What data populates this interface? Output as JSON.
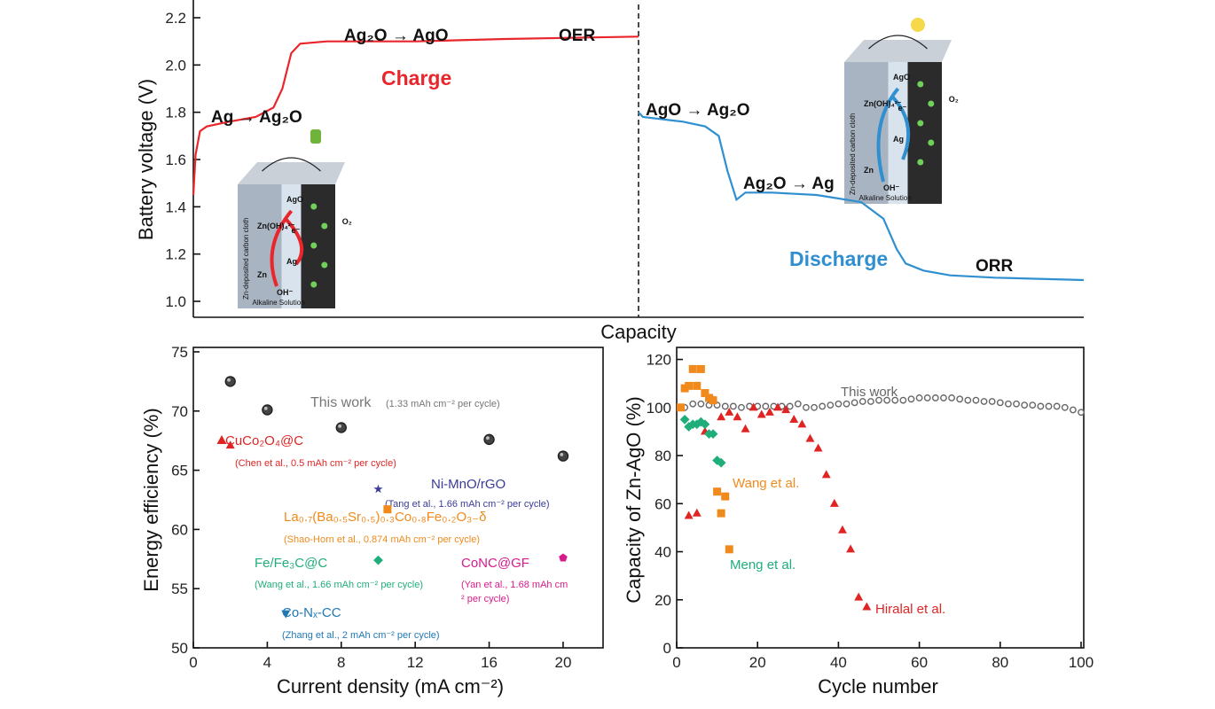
{
  "chart_data": [
    {
      "type": "line",
      "ylabel": "Battery voltage (V)",
      "xlabel": "Capacity",
      "ylim": [
        1.0,
        2.2
      ],
      "yticks": [
        "1.0",
        "1.2",
        "1.4",
        "1.6",
        "1.8",
        "2.0",
        "2.2"
      ],
      "grid": false,
      "series": [
        {
          "name": "Charge",
          "color": "#e8262b",
          "x": [
            0,
            0.5,
            1.5,
            3,
            8,
            14,
            18,
            20,
            22,
            24,
            30,
            50,
            70,
            100
          ],
          "y": [
            1.45,
            1.62,
            1.72,
            1.74,
            1.76,
            1.78,
            1.82,
            1.9,
            2.05,
            2.09,
            2.1,
            2.1,
            2.11,
            2.12
          ]
        },
        {
          "name": "Discharge",
          "color": "#2f8fd0",
          "x": [
            0,
            1,
            10,
            15,
            18,
            20,
            22,
            24,
            26,
            30,
            40,
            50,
            55,
            58,
            60,
            64,
            70,
            80,
            100
          ],
          "y": [
            1.8,
            1.78,
            1.76,
            1.74,
            1.7,
            1.55,
            1.43,
            1.46,
            1.46,
            1.46,
            1.45,
            1.42,
            1.35,
            1.22,
            1.16,
            1.13,
            1.11,
            1.1,
            1.09
          ]
        }
      ],
      "annotations": {
        "charge_label": "Charge",
        "discharge_label": "Discharge",
        "ag_ag2o": "Ag → Ag₂O",
        "ag2o_ago": "Ag₂O → AgO",
        "oer": "OER",
        "ago_ag2o": "AgO → Ag₂O",
        "ag2o_ag": "Ag₂O → Ag",
        "orr": "ORR"
      },
      "insets": {
        "cloth": "Zn-deposited carbon cloth",
        "solution": "Alkaline Solution",
        "ago": "AgO",
        "zincate": "Zn(OH)₄²⁻",
        "ag": "Ag",
        "electron": "e⁻",
        "zn": "Zn",
        "oh": "OH⁻",
        "o2": "O₂",
        "charge_icon": "plug-icon",
        "discharge_icon": "lightbulb-icon"
      }
    },
    {
      "type": "scatter",
      "xlabel": "Current density (mA cm⁻²)",
      "ylabel": "Energy efficiency (%)",
      "xlim": [
        0,
        21
      ],
      "ylim": [
        50,
        75
      ],
      "xticks": [
        "0",
        "4",
        "8",
        "12",
        "16",
        "20"
      ],
      "yticks": [
        "50",
        "55",
        "60",
        "65",
        "70",
        "75"
      ],
      "series": [
        {
          "name": "This work",
          "note": "(1.33 mAh cm⁻² per cycle)",
          "color": "#555555",
          "marker": "sphere",
          "x": [
            2,
            4,
            8,
            16,
            20
          ],
          "y": [
            72.5,
            70.1,
            68.6,
            67.6,
            66.2
          ]
        },
        {
          "name": "CuCo₂O₄@C",
          "note": "(Chen et al., 0.5 mAh cm⁻² per cycle)",
          "color": "#e02424",
          "marker": "triangle-up",
          "x": [
            2
          ],
          "y": [
            67.1
          ]
        },
        {
          "name": "Ni-MnO/rGO",
          "note": "(Tang et al., 1.66 mAh cm⁻² per cycle)",
          "color": "#3a3a9a",
          "marker": "star",
          "x": [
            10
          ],
          "y": [
            63.4
          ]
        },
        {
          "name": "La₀.₇(Ba₀.₅Sr₀.₅)₀.₃Co₀.₈Fe₀.₂O₃₋δ",
          "note": "(Shao-Horn et al., 0.874 mAh cm⁻² per cycle)",
          "color": "#f08a1c",
          "marker": "square",
          "x": [
            10.5
          ],
          "y": [
            61.7
          ]
        },
        {
          "name": "Fe/Fe₃C@C",
          "note": "(Wang et al., 1.66 mAh cm⁻² per cycle)",
          "color": "#1fae7a",
          "marker": "diamond",
          "x": [
            10
          ],
          "y": [
            57.4
          ]
        },
        {
          "name": "CoNC@GF",
          "note": "(Yan et al., 1.68 mAh cm⁻² per cycle)",
          "color": "#d81b8c",
          "marker": "pentagon",
          "x": [
            20
          ],
          "y": [
            57.6
          ]
        },
        {
          "name": "Co-Nₓ-CC",
          "note": "(Zhang et al., 2 mAh cm⁻² per cycle)",
          "color": "#1f78b4",
          "marker": "triangle-down",
          "x": [
            5
          ],
          "y": [
            52.9
          ]
        }
      ]
    },
    {
      "type": "scatter",
      "xlabel": "Cycle number",
      "ylabel": "Capacity of Zn-AgO (%)",
      "xlim": [
        0,
        100
      ],
      "ylim": [
        0,
        125
      ],
      "xticks": [
        "0",
        "20",
        "40",
        "60",
        "80",
        "100"
      ],
      "yticks": [
        "0",
        "20",
        "40",
        "60",
        "80",
        "100",
        "120"
      ],
      "series": [
        {
          "name": "This work",
          "color": "#666666",
          "marker": "circle",
          "x": [
            1,
            2,
            4,
            6,
            8,
            10,
            12,
            14,
            16,
            18,
            20,
            22,
            24,
            26,
            28,
            30,
            32,
            34,
            36,
            38,
            40,
            42,
            44,
            46,
            48,
            50,
            52,
            54,
            56,
            58,
            60,
            62,
            64,
            66,
            68,
            70,
            72,
            74,
            76,
            78,
            80,
            82,
            84,
            86,
            88,
            90,
            92,
            94,
            96,
            98,
            100
          ],
          "y": [
            100,
            100,
            101.5,
            101.5,
            101,
            101,
            100.5,
            100.5,
            100,
            100.5,
            100.5,
            100.5,
            100.5,
            100.5,
            100.5,
            101.5,
            100,
            100,
            100.5,
            101,
            101.5,
            101.5,
            102,
            102.5,
            102.5,
            103,
            103,
            103,
            103,
            103.5,
            104,
            104,
            104,
            104,
            104,
            103.5,
            103,
            103,
            102.5,
            102.5,
            102,
            101.5,
            101.5,
            101,
            101,
            100.5,
            100.5,
            100.5,
            100,
            99,
            98
          ]
        },
        {
          "name": "Hiralal et al.",
          "color": "#e02424",
          "marker": "triangle",
          "x": [
            3,
            5,
            7,
            9,
            11,
            13,
            15,
            17,
            19,
            21,
            23,
            25,
            27,
            29,
            31,
            33,
            35,
            37,
            39,
            41,
            43,
            45,
            47
          ],
          "y": [
            55,
            56,
            90,
            103,
            96,
            98,
            96,
            91,
            100,
            97,
            98,
            100,
            99,
            95,
            93,
            87,
            83,
            72,
            60,
            49,
            41,
            21,
            17
          ]
        },
        {
          "name": "Wang et al.",
          "color": "#f08a1c",
          "marker": "square",
          "x": [
            1,
            2,
            3,
            4,
            5,
            6,
            7,
            8,
            9,
            10,
            11,
            12,
            13
          ],
          "y": [
            100,
            108,
            109,
            116,
            109,
            116,
            106,
            104,
            103,
            65,
            56,
            63,
            41
          ]
        },
        {
          "name": "Meng et al.",
          "color": "#1fae7a",
          "marker": "diamond",
          "x": [
            2,
            3,
            4,
            5,
            6,
            7,
            8,
            9,
            10,
            11
          ],
          "y": [
            95,
            92,
            93,
            93,
            94,
            93,
            89,
            89,
            78,
            77
          ]
        }
      ]
    }
  ]
}
